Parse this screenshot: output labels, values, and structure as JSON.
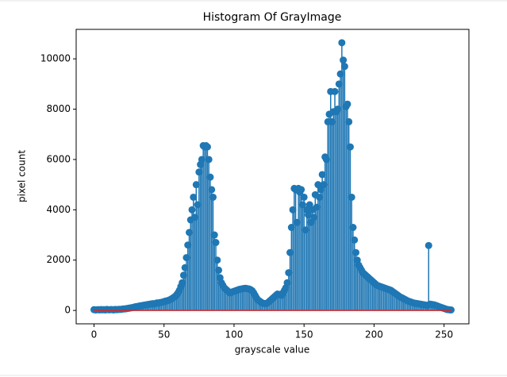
{
  "chart_data": {
    "type": "stem",
    "title": "Histogram Of GrayImage",
    "x_label": "grayscale value",
    "y_label": "pixel count",
    "x": [
      0,
      1,
      2,
      3,
      4,
      5,
      6,
      7,
      8,
      9,
      10,
      11,
      12,
      13,
      14,
      15,
      16,
      17,
      18,
      19,
      20,
      21,
      22,
      23,
      24,
      25,
      26,
      27,
      28,
      29,
      30,
      31,
      32,
      33,
      34,
      35,
      36,
      37,
      38,
      39,
      40,
      41,
      42,
      43,
      44,
      45,
      46,
      47,
      48,
      49,
      50,
      51,
      52,
      53,
      54,
      55,
      56,
      57,
      58,
      59,
      60,
      61,
      62,
      63,
      64,
      65,
      66,
      67,
      68,
      69,
      70,
      71,
      72,
      73,
      74,
      75,
      76,
      77,
      78,
      79,
      80,
      81,
      82,
      83,
      84,
      85,
      86,
      87,
      88,
      89,
      90,
      91,
      92,
      93,
      94,
      95,
      96,
      97,
      98,
      99,
      100,
      101,
      102,
      103,
      104,
      105,
      106,
      107,
      108,
      109,
      110,
      111,
      112,
      113,
      114,
      115,
      116,
      117,
      118,
      119,
      120,
      121,
      122,
      123,
      124,
      125,
      126,
      127,
      128,
      129,
      130,
      131,
      132,
      133,
      134,
      135,
      136,
      137,
      138,
      139,
      140,
      141,
      142,
      143,
      144,
      145,
      146,
      147,
      148,
      149,
      150,
      151,
      152,
      153,
      154,
      155,
      156,
      157,
      158,
      159,
      160,
      161,
      162,
      163,
      164,
      165,
      166,
      167,
      168,
      169,
      170,
      171,
      172,
      173,
      174,
      175,
      176,
      177,
      178,
      179,
      180,
      181,
      182,
      183,
      184,
      185,
      186,
      187,
      188,
      189,
      190,
      191,
      192,
      193,
      194,
      195,
      196,
      197,
      198,
      199,
      200,
      201,
      202,
      203,
      204,
      205,
      206,
      207,
      208,
      209,
      210,
      211,
      212,
      213,
      214,
      215,
      216,
      217,
      218,
      219,
      220,
      221,
      222,
      223,
      224,
      225,
      226,
      227,
      228,
      229,
      230,
      231,
      232,
      233,
      234,
      235,
      236,
      237,
      238,
      239,
      240,
      241,
      242,
      243,
      244,
      245,
      246,
      247,
      248,
      249,
      250,
      251,
      252,
      253,
      254,
      255
    ],
    "values": [
      30,
      20,
      25,
      30,
      20,
      35,
      25,
      30,
      20,
      40,
      30,
      25,
      35,
      30,
      20,
      40,
      30,
      35,
      45,
      40,
      50,
      60,
      60,
      70,
      80,
      90,
      100,
      110,
      120,
      140,
      150,
      160,
      170,
      180,
      190,
      200,
      210,
      220,
      230,
      240,
      250,
      260,
      270,
      260,
      280,
      300,
      290,
      310,
      320,
      330,
      350,
      370,
      380,
      400,
      420,
      450,
      480,
      520,
      560,
      620,
      700,
      800,
      950,
      1100,
      1400,
      1700,
      2100,
      2600,
      3100,
      3600,
      4000,
      4500,
      3700,
      5000,
      4200,
      5500,
      5800,
      6000,
      6550,
      6500,
      6550,
      6500,
      6000,
      5300,
      4800,
      4500,
      3000,
      2700,
      2000,
      1600,
      1300,
      1100,
      1000,
      900,
      850,
      800,
      750,
      700,
      720,
      740,
      760,
      780,
      800,
      820,
      840,
      850,
      860,
      870,
      880,
      870,
      860,
      850,
      820,
      780,
      700,
      600,
      500,
      420,
      380,
      340,
      300,
      280,
      270,
      280,
      300,
      350,
      400,
      450,
      500,
      550,
      600,
      650,
      640,
      620,
      600,
      700,
      800,
      900,
      1100,
      1500,
      2300,
      3300,
      4000,
      4850,
      4800,
      3500,
      4850,
      4700,
      4800,
      4200,
      4500,
      3200,
      4000,
      3800,
      4200,
      3500,
      4000,
      3700,
      4600,
      4100,
      5000,
      4500,
      4800,
      5400,
      5000,
      6100,
      6000,
      7500,
      7800,
      8700,
      7500,
      7900,
      8700,
      7900,
      8000,
      9000,
      9400,
      10640,
      9950,
      9700,
      8100,
      8200,
      7500,
      6500,
      4500,
      3300,
      2800,
      2300,
      2000,
      1800,
      1700,
      1600,
      1500,
      1450,
      1400,
      1350,
      1300,
      1250,
      1200,
      1150,
      1100,
      1050,
      1000,
      980,
      960,
      940,
      920,
      900,
      880,
      860,
      840,
      820,
      800,
      760,
      720,
      680,
      640,
      600,
      560,
      520,
      500,
      470,
      440,
      410,
      380,
      360,
      340,
      320,
      300,
      290,
      280,
      270,
      260,
      250,
      240,
      230,
      220,
      210,
      200,
      2580,
      250,
      240,
      230,
      220,
      200,
      180,
      160,
      140,
      120,
      100,
      80,
      60,
      40,
      30,
      25,
      20
    ],
    "color": "#1f77b4",
    "baseline_color": "#d62728",
    "xlim": [
      -12.75,
      267.75
    ],
    "ylim": [
      -532,
      11172
    ],
    "xticks": [
      0,
      50,
      100,
      150,
      200,
      250
    ],
    "yticks": [
      0,
      2000,
      4000,
      6000,
      8000,
      10000
    ]
  }
}
